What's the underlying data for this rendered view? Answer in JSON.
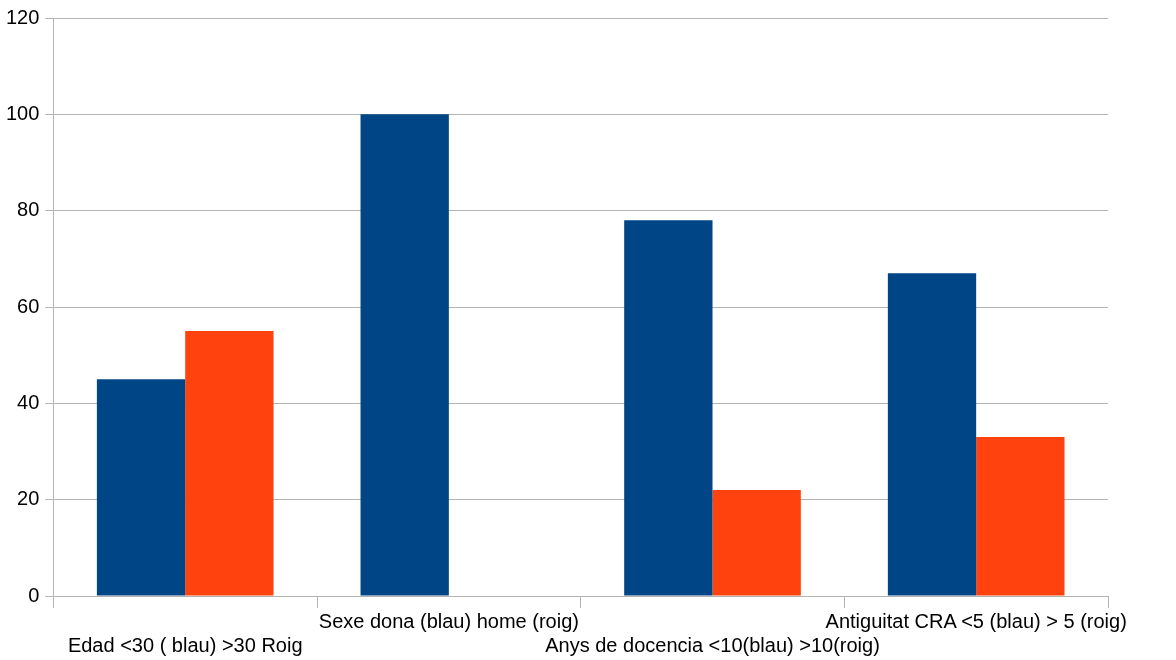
{
  "chart_data": {
    "type": "bar",
    "categories": [
      "Edad <30 ( blau) >30 Roig",
      "Sexe dona (blau) home (roig)",
      "Anys de docencia <10(blau) >10(roig)",
      "Antiguitat CRA <5 (blau) > 5 (roig)"
    ],
    "series": [
      {
        "color": "#004586",
        "values": [
          45,
          100,
          78,
          67
        ]
      },
      {
        "color": "#ff420e",
        "values": [
          55,
          0,
          22,
          33
        ]
      }
    ],
    "ylim": [
      0,
      120
    ],
    "yticks": [
      0,
      20,
      40,
      60,
      80,
      100,
      120
    ],
    "grid": "y",
    "legend": false
  }
}
